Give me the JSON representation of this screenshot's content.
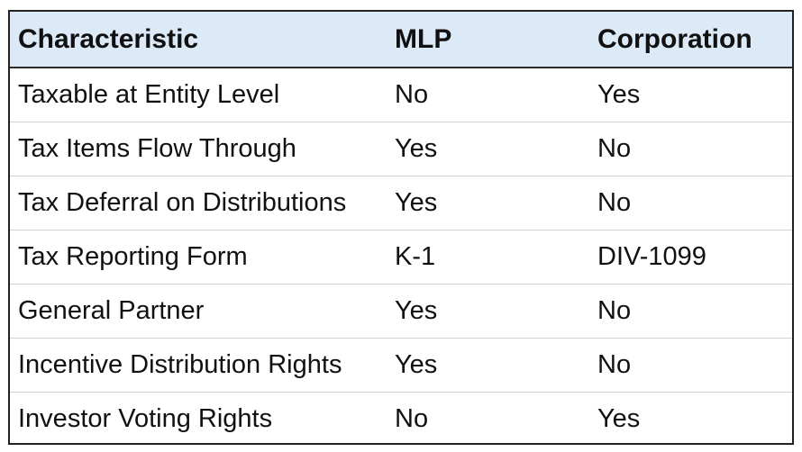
{
  "table": {
    "headers": [
      "Characteristic",
      "MLP",
      "Corporation"
    ],
    "rows": [
      [
        "Taxable at Entity Level",
        "No",
        "Yes"
      ],
      [
        "Tax Items Flow Through",
        "Yes",
        "No"
      ],
      [
        "Tax Deferral on Distributions",
        "Yes",
        "No"
      ],
      [
        "Tax Reporting Form",
        "K-1",
        "DIV-1099"
      ],
      [
        "General Partner",
        "Yes",
        "No"
      ],
      [
        "Incentive Distribution Rights",
        "Yes",
        "No"
      ],
      [
        "Investor Voting Rights",
        "No",
        "Yes"
      ]
    ]
  }
}
